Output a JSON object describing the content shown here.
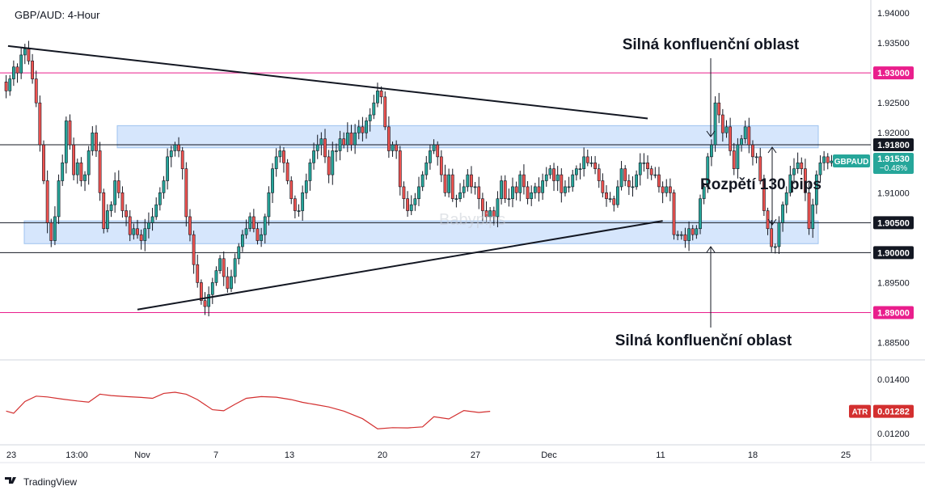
{
  "header": {
    "symbol_title": "GBP/AUD: 4-Hour"
  },
  "watermark": "Babypips",
  "footer": {
    "brand": "TradingView"
  },
  "colors": {
    "up": "#26a69a",
    "down": "#ef5350",
    "candle": "#000000",
    "zone": "#cfe2fb",
    "zone_border": "#9ec3ef",
    "magenta": "#e91e8c",
    "atr": "#d32f2f",
    "gbpaud_badge": "#26a69a"
  },
  "chart_data": [
    {
      "type": "candlestick",
      "title": "GBP/AUD: 4-Hour",
      "x_tick_labels": [
        "23",
        "13:00",
        "Nov",
        "7",
        "13",
        "20",
        "27",
        "Dec",
        "11",
        "18",
        "25"
      ],
      "y_tick_labels": [
        "1.94000",
        "1.93500",
        "1.92500",
        "1.92000",
        "1.91000",
        "1.89500",
        "1.88500"
      ],
      "ylim": [
        1.8825,
        1.9415
      ],
      "price_badges": [
        {
          "label": "1.93000",
          "value": 1.93,
          "style": "magenta"
        },
        {
          "label": "1.91800",
          "value": 1.918,
          "style": "dark"
        },
        {
          "label": "1.90500",
          "value": 1.905,
          "style": "dark"
        },
        {
          "label": "1.90000",
          "value": 1.9,
          "style": "dark"
        },
        {
          "label": "1.89000",
          "value": 1.89,
          "style": "magenta"
        }
      ],
      "current_price": {
        "symbol": "GBPAUD",
        "price": "1.91530",
        "change": "−0.48%",
        "value": 1.9153
      },
      "horizontal_lines": [
        {
          "value": 1.93,
          "color": "magenta"
        },
        {
          "value": 1.918,
          "color": "black"
        },
        {
          "value": 1.905,
          "color": "black"
        },
        {
          "value": 1.9,
          "color": "black"
        },
        {
          "value": 1.89,
          "color": "magenta"
        }
      ],
      "zones": [
        {
          "top": 1.9212,
          "bottom": 1.9175
        },
        {
          "top": 1.9053,
          "bottom": 1.9015
        }
      ],
      "trendlines": [
        {
          "from": [
            0.5,
            1.9345
          ],
          "to": [
            171,
            1.9224
          ]
        },
        {
          "from": [
            35,
            1.8905
          ],
          "to": [
            175,
            1.9053
          ]
        }
      ],
      "annotations": [
        {
          "text": "Silná konfluenční oblast",
          "position": "top"
        },
        {
          "text": "Rozpětí 130 pips",
          "position": "right"
        },
        {
          "text": "Silná konfluenční oblast",
          "position": "bottom"
        }
      ],
      "close_series": [
        1.927,
        1.929,
        1.931,
        1.93,
        1.933,
        1.934,
        1.932,
        1.929,
        1.925,
        1.918,
        1.912,
        1.905,
        1.902,
        1.906,
        1.912,
        1.915,
        1.922,
        1.918,
        1.913,
        1.915,
        1.912,
        1.913,
        1.917,
        1.92,
        1.917,
        1.91,
        1.904,
        1.907,
        1.908,
        1.912,
        1.91,
        1.907,
        1.906,
        1.903,
        1.904,
        1.903,
        1.902,
        1.904,
        1.905,
        1.906,
        1.908,
        1.91,
        1.912,
        1.916,
        1.917,
        1.918,
        1.917,
        1.914,
        1.906,
        1.903,
        1.898,
        1.895,
        1.892,
        1.891,
        1.893,
        1.895,
        1.897,
        1.899,
        1.896,
        1.894,
        1.896,
        1.899,
        1.901,
        1.903,
        1.904,
        1.906,
        1.904,
        1.902,
        1.903,
        1.906,
        1.91,
        1.914,
        1.916,
        1.917,
        1.915,
        1.912,
        1.909,
        1.907,
        1.907,
        1.91,
        1.912,
        1.915,
        1.917,
        1.918,
        1.919,
        1.916,
        1.913,
        1.917,
        1.917,
        1.919,
        1.918,
        1.92,
        1.918,
        1.92,
        1.921,
        1.92,
        1.922,
        1.923,
        1.925,
        1.927,
        1.926,
        1.921,
        1.917,
        1.918,
        1.917,
        1.911,
        1.909,
        1.907,
        1.908,
        1.909,
        1.911,
        1.913,
        1.915,
        1.917,
        1.918,
        1.916,
        1.913,
        1.91,
        1.913,
        1.909,
        1.909,
        1.91,
        1.911,
        1.913,
        1.911,
        1.911,
        1.909,
        1.907,
        1.906,
        1.907,
        1.906,
        1.909,
        1.912,
        1.909,
        1.909,
        1.911,
        1.91,
        1.913,
        1.911,
        1.909,
        1.91,
        1.911,
        1.91,
        1.912,
        1.913,
        1.914,
        1.912,
        1.913,
        1.91,
        1.911,
        1.911,
        1.913,
        1.914,
        1.914,
        1.916,
        1.915,
        1.915,
        1.914,
        1.912,
        1.91,
        1.909,
        1.909,
        1.908,
        1.911,
        1.914,
        1.912,
        1.911,
        1.911,
        1.913,
        1.915,
        1.915,
        1.914,
        1.913,
        1.913,
        1.911,
        1.91,
        1.911,
        1.91,
        1.903,
        1.903,
        1.903,
        1.902,
        1.904,
        1.903,
        1.904,
        1.909,
        1.911,
        1.916,
        1.918,
        1.925,
        1.923,
        1.92,
        1.921,
        1.917,
        1.914,
        1.918,
        1.919,
        1.921,
        1.918,
        1.916,
        1.916,
        1.912,
        1.907,
        1.904,
        1.901,
        1.901,
        1.905,
        1.908,
        1.91,
        1.913,
        1.914,
        1.915,
        1.914,
        1.91,
        1.904,
        1.908,
        1.913,
        1.915,
        1.916,
        1.915,
        1.9153
      ],
      "lower_pane": {
        "indicator": "ATR",
        "value_label": "0.01282",
        "y_tick_labels": [
          "0.01400",
          "0.01200"
        ],
        "ylim": [
          0.01165,
          0.01465
        ],
        "values": [
          [
            0,
            0.01283
          ],
          [
            2,
            0.01275
          ],
          [
            5,
            0.01318
          ],
          [
            8,
            0.01338
          ],
          [
            11,
            0.01335
          ],
          [
            15,
            0.01327
          ],
          [
            19,
            0.0132
          ],
          [
            22,
            0.01316
          ],
          [
            25,
            0.01345
          ],
          [
            28,
            0.0134
          ],
          [
            32,
            0.01336
          ],
          [
            36,
            0.01333
          ],
          [
            39,
            0.0133
          ],
          [
            42,
            0.01348
          ],
          [
            45,
            0.01352
          ],
          [
            48,
            0.01345
          ],
          [
            51,
            0.01325
          ],
          [
            55,
            0.01288
          ],
          [
            58,
            0.01284
          ],
          [
            61,
            0.01308
          ],
          [
            64,
            0.0133
          ],
          [
            68,
            0.01336
          ],
          [
            72,
            0.01334
          ],
          [
            76,
            0.01325
          ],
          [
            79,
            0.01315
          ],
          [
            82,
            0.01308
          ],
          [
            86,
            0.01298
          ],
          [
            90,
            0.01283
          ],
          [
            95,
            0.01255
          ],
          [
            99,
            0.01218
          ],
          [
            103,
            0.01222
          ],
          [
            107,
            0.01221
          ],
          [
            111,
            0.01225
          ],
          [
            114,
            0.01262
          ],
          [
            118,
            0.01254
          ],
          [
            122,
            0.01285
          ],
          [
            126,
            0.01278
          ],
          [
            129,
            0.01282
          ]
        ]
      }
    }
  ]
}
